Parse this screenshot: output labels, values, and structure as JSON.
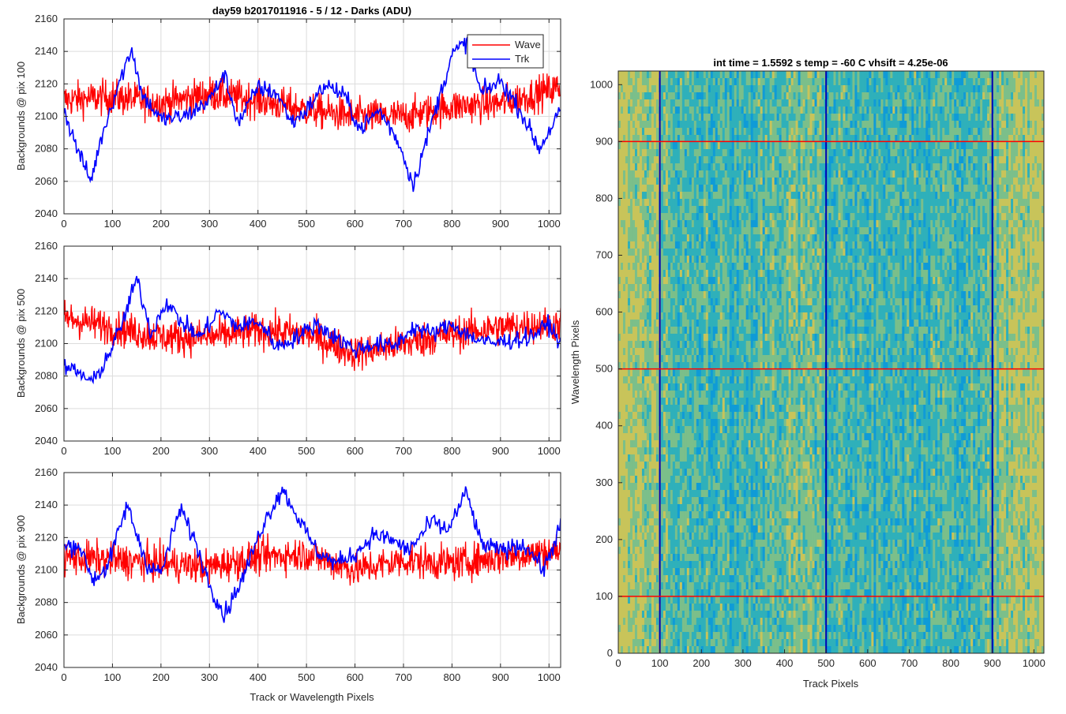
{
  "figure": {
    "left_title": "day59 b2017011916 - 5 / 12 - Darks (ADU)",
    "right_title": "int time = 1.5592 s    temp = -60 C    vhsift = 4.25e-06"
  },
  "colors": {
    "wave": "#ff0000",
    "trk": "#0000ff",
    "grid": "#dcdcdc",
    "axis": "#262626"
  },
  "chart_data": [
    {
      "type": "line",
      "ylabel": "Backgrounds @ pix 100",
      "xlabel": "",
      "xlim": [
        0,
        1024
      ],
      "ylim": [
        2040,
        2160
      ],
      "xticks": [
        0,
        100,
        200,
        300,
        400,
        500,
        600,
        700,
        800,
        900,
        1000
      ],
      "yticks": [
        2040,
        2060,
        2080,
        2100,
        2120,
        2140,
        2160
      ],
      "grid": true,
      "legend": {
        "position": "top-right",
        "entries": [
          "Wave",
          "Trk"
        ]
      },
      "series": [
        {
          "name": "Wave",
          "color": "#ff0000",
          "mean": 2109,
          "spread": 14,
          "x": [
            0,
            100,
            200,
            300,
            400,
            500,
            600,
            700,
            800,
            900,
            1024
          ],
          "y": [
            2110,
            2112,
            2108,
            2114,
            2110,
            2104,
            2100,
            2100,
            2106,
            2108,
            2118
          ]
        },
        {
          "name": "Trk",
          "color": "#0000ff",
          "x": [
            0,
            25,
            55,
            80,
            110,
            140,
            160,
            200,
            250,
            300,
            330,
            360,
            400,
            440,
            470,
            500,
            540,
            580,
            610,
            650,
            690,
            720,
            760,
            800,
            830,
            860,
            900,
            940,
            980,
            1024
          ],
          "y": [
            2104,
            2082,
            2060,
            2090,
            2118,
            2142,
            2114,
            2098,
            2100,
            2110,
            2126,
            2096,
            2118,
            2114,
            2096,
            2104,
            2120,
            2112,
            2092,
            2104,
            2084,
            2058,
            2098,
            2138,
            2146,
            2114,
            2122,
            2104,
            2080,
            2104
          ]
        }
      ]
    },
    {
      "type": "line",
      "ylabel": "Backgrounds @ pix 500",
      "xlabel": "",
      "xlim": [
        0,
        1024
      ],
      "ylim": [
        2040,
        2160
      ],
      "xticks": [
        0,
        100,
        200,
        300,
        400,
        500,
        600,
        700,
        800,
        900,
        1000
      ],
      "yticks": [
        2040,
        2060,
        2080,
        2100,
        2120,
        2140,
        2160
      ],
      "grid": true,
      "series": [
        {
          "name": "Wave",
          "color": "#ff0000",
          "mean": 2106,
          "spread": 14,
          "x": [
            0,
            100,
            200,
            300,
            400,
            500,
            600,
            700,
            800,
            900,
            1024
          ],
          "y": [
            2116,
            2110,
            2104,
            2104,
            2108,
            2106,
            2094,
            2100,
            2106,
            2110,
            2112
          ]
        },
        {
          "name": "Trk",
          "color": "#0000ff",
          "x": [
            0,
            30,
            60,
            90,
            120,
            150,
            180,
            210,
            240,
            280,
            320,
            360,
            400,
            440,
            480,
            520,
            560,
            600,
            640,
            680,
            720,
            760,
            800,
            840,
            880,
            920,
            960,
            1000,
            1024
          ],
          "y": [
            2086,
            2082,
            2076,
            2092,
            2112,
            2140,
            2106,
            2126,
            2114,
            2104,
            2120,
            2110,
            2114,
            2098,
            2104,
            2112,
            2104,
            2096,
            2100,
            2098,
            2110,
            2106,
            2112,
            2104,
            2100,
            2102,
            2104,
            2112,
            2100
          ]
        }
      ]
    },
    {
      "type": "line",
      "ylabel": "Backgrounds @ pix 900",
      "xlabel": "Track or Wavelength Pixels",
      "xlim": [
        0,
        1024
      ],
      "ylim": [
        2040,
        2160
      ],
      "xticks": [
        0,
        100,
        200,
        300,
        400,
        500,
        600,
        700,
        800,
        900,
        1000
      ],
      "yticks": [
        2040,
        2060,
        2080,
        2100,
        2120,
        2140,
        2160
      ],
      "grid": true,
      "series": [
        {
          "name": "Wave",
          "color": "#ff0000",
          "mean": 2106,
          "spread": 14,
          "x": [
            0,
            100,
            200,
            300,
            400,
            500,
            600,
            700,
            800,
            900,
            1024
          ],
          "y": [
            2108,
            2106,
            2104,
            2102,
            2108,
            2110,
            2100,
            2106,
            2104,
            2108,
            2112
          ]
        },
        {
          "name": "Trk",
          "color": "#0000ff",
          "x": [
            0,
            30,
            60,
            90,
            130,
            170,
            200,
            240,
            270,
            300,
            330,
            370,
            410,
            450,
            480,
            520,
            560,
            600,
            640,
            680,
            710,
            760,
            790,
            830,
            860,
            900,
            950,
            990,
            1024
          ],
          "y": [
            2114,
            2116,
            2094,
            2102,
            2140,
            2104,
            2098,
            2138,
            2118,
            2092,
            2072,
            2096,
            2128,
            2150,
            2134,
            2112,
            2104,
            2110,
            2122,
            2118,
            2112,
            2130,
            2124,
            2148,
            2116,
            2112,
            2116,
            2100,
            2128
          ]
        }
      ]
    },
    {
      "type": "heatmap",
      "title": "int time = 1.5592 s    temp = -60 C    vhsift = 4.25e-06",
      "xlabel": "Track Pixels",
      "ylabel": "Wavelength Pixels",
      "xlim": [
        0,
        1024
      ],
      "ylim": [
        0,
        1024
      ],
      "xticks": [
        0,
        100,
        200,
        300,
        400,
        500,
        600,
        700,
        800,
        900,
        1000
      ],
      "yticks": [
        0,
        100,
        200,
        300,
        400,
        500,
        600,
        700,
        800,
        900,
        1000
      ],
      "colormap": [
        "#0f9bd7",
        "#2fb0ba",
        "#7bbf8a",
        "#c8c45a"
      ],
      "vertical_lines": {
        "color": "#0000b4",
        "x": [
          100,
          500,
          900
        ]
      },
      "horizontal_lines": {
        "color": "#ff0000",
        "y": [
          100,
          500,
          900
        ]
      }
    }
  ]
}
